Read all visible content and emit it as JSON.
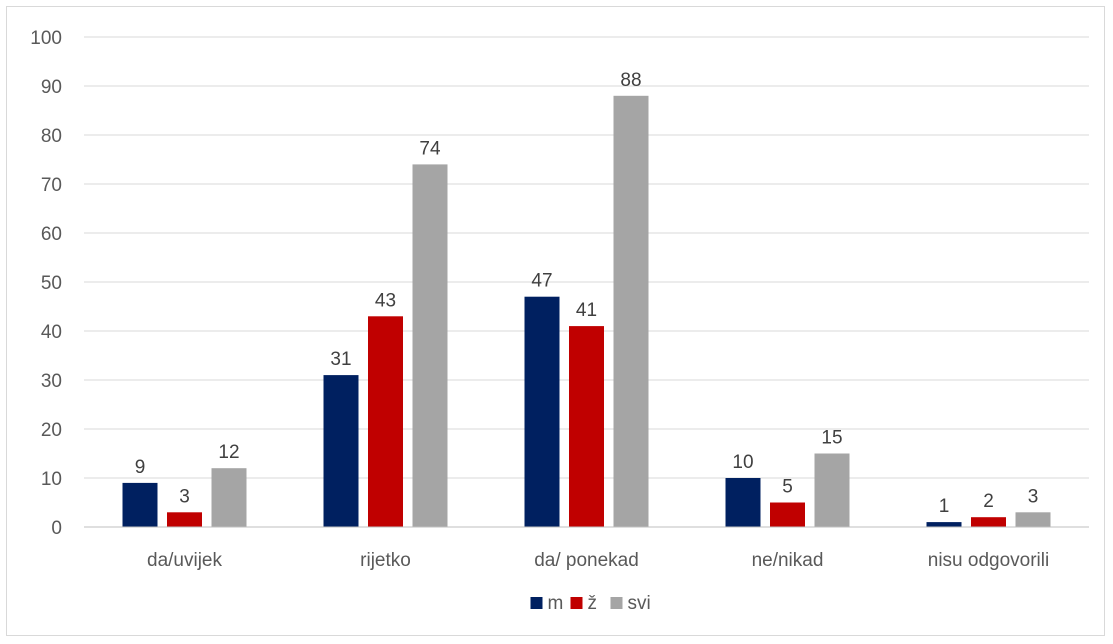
{
  "chart_data": {
    "type": "bar",
    "title": "",
    "xlabel": "",
    "ylabel": "",
    "ylim": [
      0,
      100
    ],
    "yticks": [
      0,
      10,
      20,
      30,
      40,
      50,
      60,
      70,
      80,
      90,
      100
    ],
    "grid": true,
    "legend_position": "bottom",
    "categories": [
      "da/uvijek",
      "rijetko",
      "da/ ponekad",
      "ne/nikad",
      "nisu odgovorili"
    ],
    "series": [
      {
        "name": "m",
        "color": "#002060",
        "values": [
          9,
          31,
          47,
          10,
          1
        ]
      },
      {
        "name": "ž",
        "color": "#C00000",
        "values": [
          3,
          43,
          41,
          5,
          2
        ]
      },
      {
        "name": "svi",
        "color": "#A5A5A5",
        "values": [
          12,
          74,
          88,
          15,
          3
        ]
      }
    ]
  }
}
